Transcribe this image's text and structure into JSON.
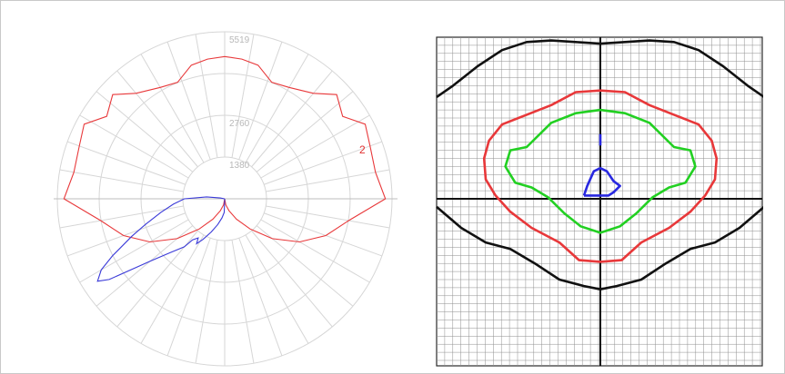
{
  "chart_data": [
    {
      "type": "polar",
      "title": "",
      "radial_ticks": [
        1380,
        2760,
        4139,
        5519
      ],
      "radial_tick_labels": [
        "1380",
        "2760",
        "",
        "5519"
      ],
      "angular_spokes": 36,
      "grid": true,
      "series": [
        {
          "label": "2",
          "color": "#e8383a",
          "points": [
            {
              "angle": 0,
              "r": 0
            },
            {
              "angle": 10,
              "r": 200
            },
            {
              "angle": 20,
              "r": 420
            },
            {
              "angle": 30,
              "r": 780
            },
            {
              "angle": 40,
              "r": 1300
            },
            {
              "angle": 50,
              "r": 2050
            },
            {
              "angle": 60,
              "r": 2850
            },
            {
              "angle": 70,
              "r": 3550
            },
            {
              "angle": 80,
              "r": 4150
            },
            {
              "angle": 90,
              "r": 5300
            },
            {
              "angle": 100,
              "r": 5050
            },
            {
              "angle": 110,
              "r": 5100
            },
            {
              "angle": 118,
              "r": 5250
            },
            {
              "angle": 125,
              "r": 4750
            },
            {
              "angle": 133,
              "r": 5050
            },
            {
              "angle": 140,
              "r": 4550
            },
            {
              "angle": 150,
              "r": 4250
            },
            {
              "angle": 158,
              "r": 4150
            },
            {
              "angle": 166,
              "r": 4550
            },
            {
              "angle": 173,
              "r": 4650
            },
            {
              "angle": 180,
              "r": 4700
            },
            {
              "angle": 187,
              "r": 4650
            },
            {
              "angle": 194,
              "r": 4550
            },
            {
              "angle": 202,
              "r": 4150
            },
            {
              "angle": 210,
              "r": 4250
            },
            {
              "angle": 220,
              "r": 4550
            },
            {
              "angle": 227,
              "r": 5050
            },
            {
              "angle": 235,
              "r": 4750
            },
            {
              "angle": 242,
              "r": 5250
            },
            {
              "angle": 250,
              "r": 5100
            },
            {
              "angle": 260,
              "r": 5050
            },
            {
              "angle": 270,
              "r": 5300
            },
            {
              "angle": 280,
              "r": 4150
            },
            {
              "angle": 290,
              "r": 3550
            },
            {
              "angle": 300,
              "r": 2850
            },
            {
              "angle": 310,
              "r": 2050
            },
            {
              "angle": 320,
              "r": 1300
            },
            {
              "angle": 330,
              "r": 780
            },
            {
              "angle": 340,
              "r": 420
            },
            {
              "angle": 350,
              "r": 200
            },
            {
              "angle": 360,
              "r": 0
            }
          ]
        },
        {
          "label": "",
          "color": "#3a3ad8",
          "points": [
            {
              "angle": 0,
              "r": 0
            },
            {
              "angle": 2,
              "r": 450
            },
            {
              "angle": 8,
              "r": 640
            },
            {
              "angle": 15,
              "r": 880
            },
            {
              "angle": 22,
              "r": 1180
            },
            {
              "angle": 28,
              "r": 1520
            },
            {
              "angle": 32,
              "r": 1750
            },
            {
              "angle": 34,
              "r": 1560
            },
            {
              "angle": 38,
              "r": 1720
            },
            {
              "angle": 40,
              "r": 2070
            },
            {
              "angle": 45,
              "r": 2500
            },
            {
              "angle": 50,
              "r": 3200
            },
            {
              "angle": 55,
              "r": 4650
            },
            {
              "angle": 57,
              "r": 5000
            },
            {
              "angle": 60,
              "r": 4700
            },
            {
              "angle": 63,
              "r": 4150
            },
            {
              "angle": 68,
              "r": 3300
            },
            {
              "angle": 72,
              "r": 2750
            },
            {
              "angle": 78,
              "r": 2150
            },
            {
              "angle": 84,
              "r": 1700
            },
            {
              "angle": 90,
              "r": 1330
            },
            {
              "angle": 96,
              "r": 600
            },
            {
              "angle": 100,
              "r": 150
            },
            {
              "angle": 180,
              "r": 0
            },
            {
              "angle": 360,
              "r": 0
            }
          ]
        }
      ]
    },
    {
      "type": "contour",
      "title": "",
      "grid": true,
      "crosshair": true,
      "series": [
        {
          "label": "",
          "color": "#111111",
          "curves": [
            [
              [
                -1.0,
                0.63
              ],
              [
                -0.9,
                0.7
              ],
              [
                -0.75,
                0.82
              ],
              [
                -0.6,
                0.92
              ],
              [
                -0.45,
                0.97
              ],
              [
                -0.3,
                0.98
              ],
              [
                -0.15,
                0.97
              ],
              [
                0.0,
                0.96
              ],
              [
                0.15,
                0.97
              ],
              [
                0.3,
                0.98
              ],
              [
                0.45,
                0.97
              ],
              [
                0.6,
                0.92
              ],
              [
                0.75,
                0.82
              ],
              [
                0.9,
                0.7
              ],
              [
                1.0,
                0.63
              ]
            ],
            [
              [
                -1.0,
                -0.05
              ],
              [
                -0.85,
                -0.18
              ],
              [
                -0.7,
                -0.27
              ],
              [
                -0.55,
                -0.31
              ],
              [
                -0.4,
                -0.4
              ],
              [
                -0.25,
                -0.5
              ],
              [
                -0.1,
                -0.54
              ],
              [
                0.0,
                -0.56
              ],
              [
                0.1,
                -0.54
              ],
              [
                0.25,
                -0.5
              ],
              [
                0.4,
                -0.4
              ],
              [
                0.55,
                -0.31
              ],
              [
                0.7,
                -0.27
              ],
              [
                0.85,
                -0.18
              ],
              [
                1.0,
                -0.05
              ]
            ]
          ]
        },
        {
          "label": "",
          "color": "#e8383a",
          "curves": [
            [
              [
                0.0,
                0.67
              ],
              [
                0.15,
                0.66
              ],
              [
                0.3,
                0.58
              ],
              [
                0.45,
                0.52
              ],
              [
                0.6,
                0.46
              ],
              [
                0.68,
                0.36
              ],
              [
                0.71,
                0.25
              ],
              [
                0.7,
                0.12
              ],
              [
                0.64,
                0.02
              ],
              [
                0.55,
                -0.08
              ],
              [
                0.42,
                -0.18
              ],
              [
                0.25,
                -0.27
              ],
              [
                0.13,
                -0.38
              ],
              [
                0.0,
                -0.39
              ],
              [
                -0.13,
                -0.38
              ],
              [
                -0.25,
                -0.27
              ],
              [
                -0.42,
                -0.18
              ],
              [
                -0.55,
                -0.08
              ],
              [
                -0.64,
                0.02
              ],
              [
                -0.7,
                0.12
              ],
              [
                -0.71,
                0.25
              ],
              [
                -0.68,
                0.36
              ],
              [
                -0.6,
                0.46
              ],
              [
                -0.45,
                0.52
              ],
              [
                -0.3,
                0.58
              ],
              [
                -0.15,
                0.66
              ],
              [
                0.0,
                0.67
              ]
            ]
          ]
        },
        {
          "label": "",
          "color": "#22d022",
          "curves": [
            [
              [
                0.0,
                0.55
              ],
              [
                0.15,
                0.53
              ],
              [
                0.3,
                0.47
              ],
              [
                0.45,
                0.32
              ],
              [
                0.55,
                0.3
              ],
              [
                0.58,
                0.2
              ],
              [
                0.52,
                0.1
              ],
              [
                0.42,
                0.07
              ],
              [
                0.32,
                0.01
              ],
              [
                0.22,
                -0.09
              ],
              [
                0.12,
                -0.17
              ],
              [
                0.0,
                -0.21
              ],
              [
                -0.12,
                -0.17
              ],
              [
                -0.22,
                -0.09
              ],
              [
                -0.32,
                0.01
              ],
              [
                -0.42,
                0.07
              ],
              [
                -0.52,
                0.1
              ],
              [
                -0.58,
                0.2
              ],
              [
                -0.55,
                0.3
              ],
              [
                -0.45,
                0.32
              ],
              [
                -0.3,
                0.47
              ],
              [
                -0.15,
                0.53
              ],
              [
                0.0,
                0.55
              ]
            ]
          ]
        },
        {
          "label": "",
          "color": "#2828e0",
          "curves": [
            [
              [
                -0.1,
                0.02
              ],
              [
                -0.08,
                0.08
              ],
              [
                -0.04,
                0.17
              ],
              [
                0.0,
                0.19
              ],
              [
                0.04,
                0.17
              ],
              [
                0.08,
                0.11
              ],
              [
                0.12,
                0.08
              ],
              [
                0.08,
                0.04
              ],
              [
                0.05,
                0.02
              ],
              [
                -0.1,
                0.02
              ]
            ],
            [
              [
                0.0,
                0.4
              ],
              [
                0.0,
                0.33
              ]
            ]
          ]
        }
      ]
    }
  ]
}
